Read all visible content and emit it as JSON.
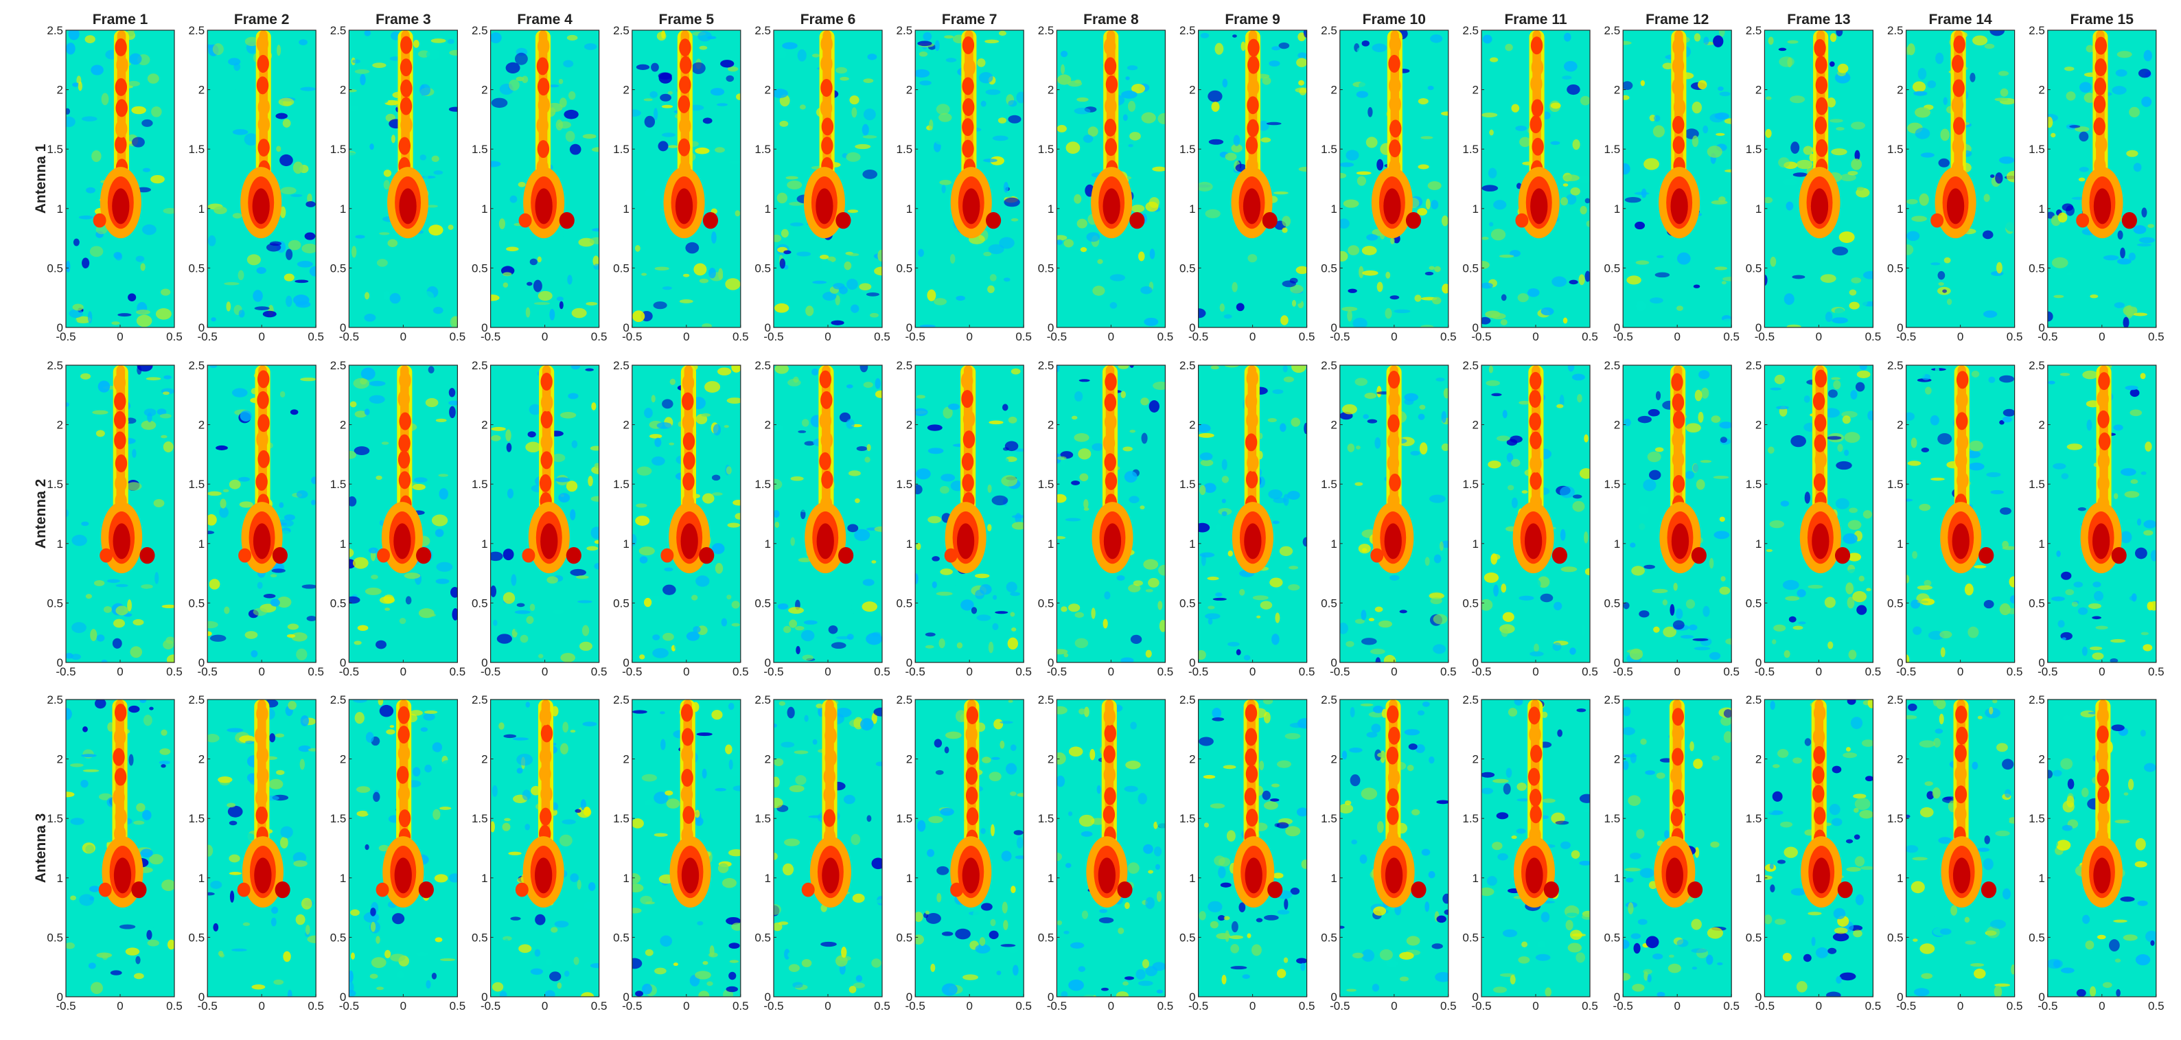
{
  "chart_data": {
    "type": "heatmap",
    "layout_desc": "grid of heatmaps, 3 rows by 15 columns",
    "frame_titles": [
      "Frame 1",
      "Frame 2",
      "Frame 3",
      "Frame 4",
      "Frame 5",
      "Frame 6",
      "Frame 7",
      "Frame 8",
      "Frame 9",
      "Frame 10",
      "Frame 11",
      "Frame 12",
      "Frame 13",
      "Frame 14",
      "Frame 15"
    ],
    "row_labels": [
      "Antenna 1",
      "Antenna 2",
      "Antenna 3"
    ],
    "xlim": [
      -0.5,
      0.5
    ],
    "ylim": [
      0,
      2.5
    ],
    "x_ticks": [
      "-0.5",
      "0",
      "0.5"
    ],
    "y_ticks": [
      "0",
      "0.5",
      "1",
      "1.5",
      "2",
      "2.5"
    ],
    "colormap": [
      "#0000c8",
      "#00b4ff",
      "#00e6c8",
      "#7ae65a",
      "#e6f000",
      "#ffa500",
      "#ff3c00",
      "#c80000"
    ],
    "description": "Each panel shows a vertical high-intensity streak along x≈0 from y≈0.8 to y≈2.5 with a bright blob near y≈1 over a noisy background.",
    "grid": false,
    "legend": "none"
  }
}
